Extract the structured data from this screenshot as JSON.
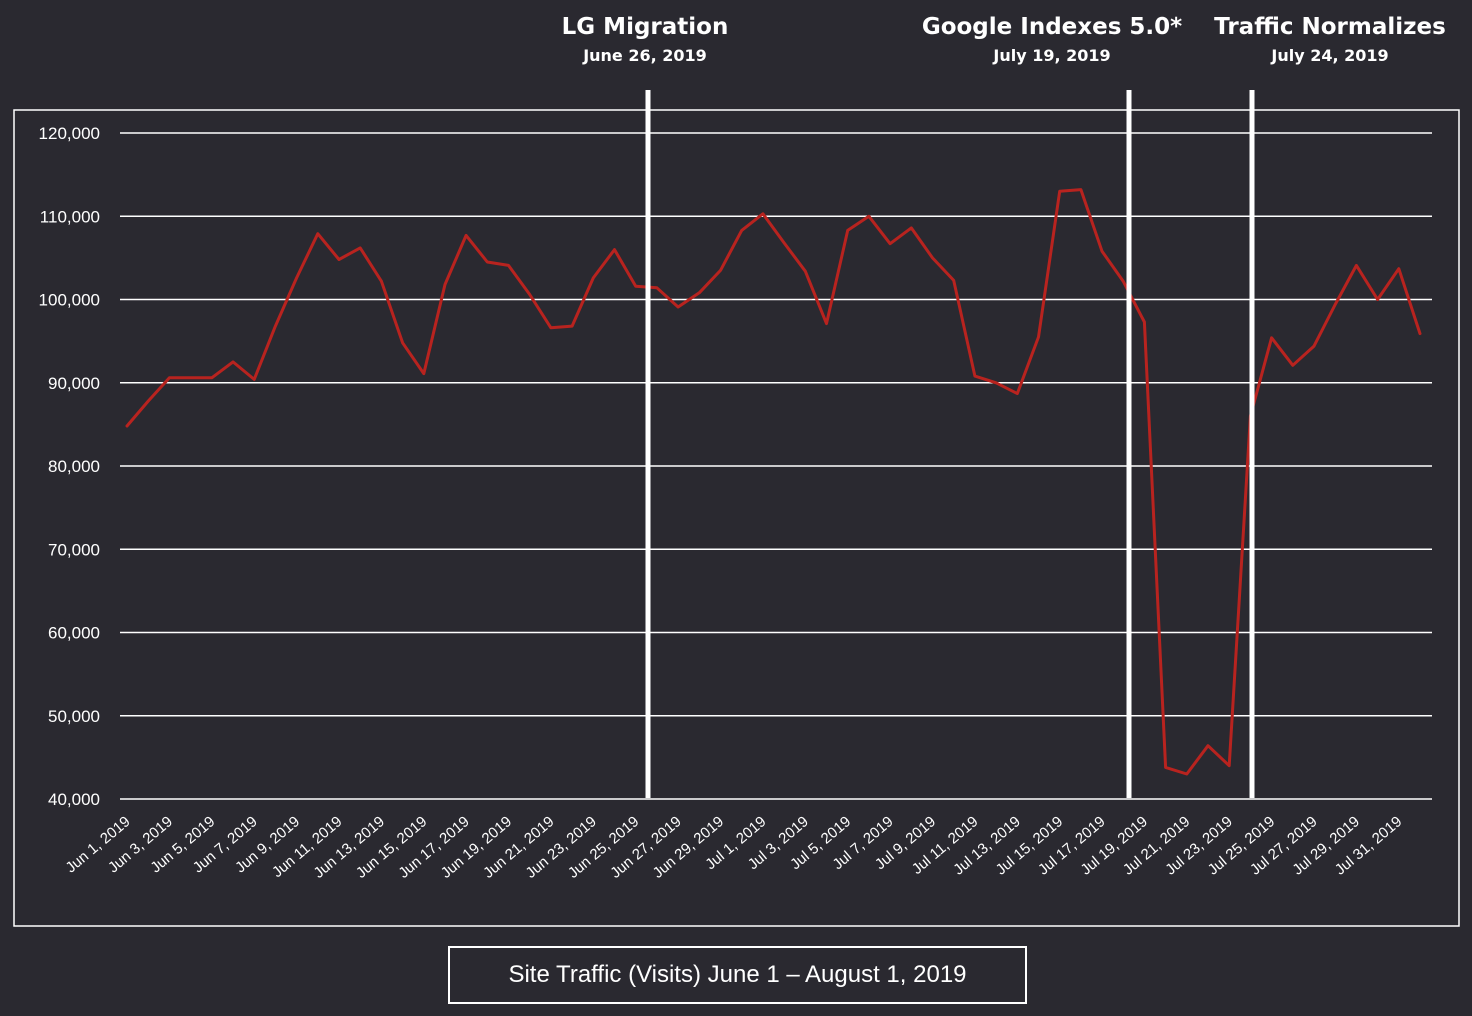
{
  "chart_data": {
    "type": "line",
    "caption": "Site Traffic (Visits) June 1 – August 1, 2019",
    "ylim": [
      40000,
      120000
    ],
    "yticks": [
      40000,
      50000,
      60000,
      70000,
      80000,
      90000,
      100000,
      110000,
      120000
    ],
    "ytick_labels": [
      "40,000",
      "50,000",
      "60,000",
      "70,000",
      "80,000",
      "90,000",
      "100,000",
      "110,000",
      "120,000"
    ],
    "grid": true,
    "x": [
      "Jun 1, 2019",
      "Jun 2, 2019",
      "Jun 3, 2019",
      "Jun 4, 2019",
      "Jun 5, 2019",
      "Jun 6, 2019",
      "Jun 7, 2019",
      "Jun 8, 2019",
      "Jun 9, 2019",
      "Jun 10, 2019",
      "Jun 11, 2019",
      "Jun 12, 2019",
      "Jun 13, 2019",
      "Jun 14, 2019",
      "Jun 15, 2019",
      "Jun 16, 2019",
      "Jun 17, 2019",
      "Jun 18, 2019",
      "Jun 19, 2019",
      "Jun 20, 2019",
      "Jun 21, 2019",
      "Jun 22, 2019",
      "Jun 23, 2019",
      "Jun 24, 2019",
      "Jun 25, 2019",
      "Jun 26, 2019",
      "Jun 27, 2019",
      "Jun 28, 2019",
      "Jun 29, 2019",
      "Jun 30, 2019",
      "Jul 1, 2019",
      "Jul 2, 2019",
      "Jul 3, 2019",
      "Jul 4, 2019",
      "Jul 5, 2019",
      "Jul 6, 2019",
      "Jul 7, 2019",
      "Jul 8, 2019",
      "Jul 9, 2019",
      "Jul 10, 2019",
      "Jul 11, 2019",
      "Jul 12, 2019",
      "Jul 13, 2019",
      "Jul 14, 2019",
      "Jul 15, 2019",
      "Jul 16, 2019",
      "Jul 17, 2019",
      "Jul 18, 2019",
      "Jul 19, 2019",
      "Jul 20, 2019",
      "Jul 21, 2019",
      "Jul 22, 2019",
      "Jul 23, 2019",
      "Jul 24, 2019",
      "Jul 25, 2019",
      "Jul 26, 2019",
      "Jul 27, 2019",
      "Jul 28, 2019",
      "Jul 29, 2019",
      "Jul 30, 2019",
      "Jul 31, 2019",
      "Aug 1, 2019"
    ],
    "xtick_labels": [
      "Jun 1, 2019",
      "Jun 3, 2019",
      "Jun 5, 2019",
      "Jun 7, 2019",
      "Jun 9, 2019",
      "Jun 11, 2019",
      "Jun 13, 2019",
      "Jun 15, 2019",
      "Jun 17, 2019",
      "Jun 19, 2019",
      "Jun 21, 2019",
      "Jun 23, 2019",
      "Jun 25, 2019",
      "Jun 27, 2019",
      "Jun 29, 2019",
      "Jul 1, 2019",
      "Jul 3, 2019",
      "Jul 5, 2019",
      "Jul 7, 2019",
      "Jul 9, 2019",
      "Jul 11, 2019",
      "Jul 13, 2019",
      "Jul 15, 2019",
      "Jul 17, 2019",
      "Jul 19, 2019",
      "Jul 21, 2019",
      "Jul 23, 2019",
      "Jul 25, 2019",
      "Jul 27, 2019",
      "Jul 29, 2019",
      "Jul 31, 2019"
    ],
    "series": [
      {
        "color": "#b8231f",
        "values": [
          84800,
          87800,
          90600,
          90600,
          90600,
          92500,
          90400,
          96800,
          102600,
          107900,
          104800,
          106200,
          102200,
          94800,
          91100,
          101800,
          107700,
          104500,
          104100,
          100600,
          96600,
          96800,
          102600,
          106000,
          101600,
          101400,
          99100,
          100800,
          103500,
          108300,
          110300,
          106800,
          103400,
          97100,
          108300,
          110000,
          106700,
          108600,
          105000,
          102300,
          90800,
          90000,
          88700,
          95500,
          113000,
          113200,
          105800,
          102200,
          97300,
          43800,
          43000,
          46400,
          44000,
          86000,
          95400,
          92100,
          94400,
          99400,
          104100,
          100000,
          103700,
          95900
        ]
      }
    ],
    "annotations": [
      {
        "title": "LG Migration",
        "date": "June 26, 2019",
        "x": "Jun 26, 2019"
      },
      {
        "title": "Google Indexes 5.0*",
        "date": "July 19, 2019",
        "x": "Jul 19, 2019"
      },
      {
        "title": "Traffic Normalizes",
        "date": "July 24, 2019",
        "x": "Jul 24, 2019"
      }
    ],
    "colors": {
      "background": "#2a2930",
      "line": "#b8231f",
      "grid": "#ffffff",
      "text": "#ffffff"
    }
  }
}
